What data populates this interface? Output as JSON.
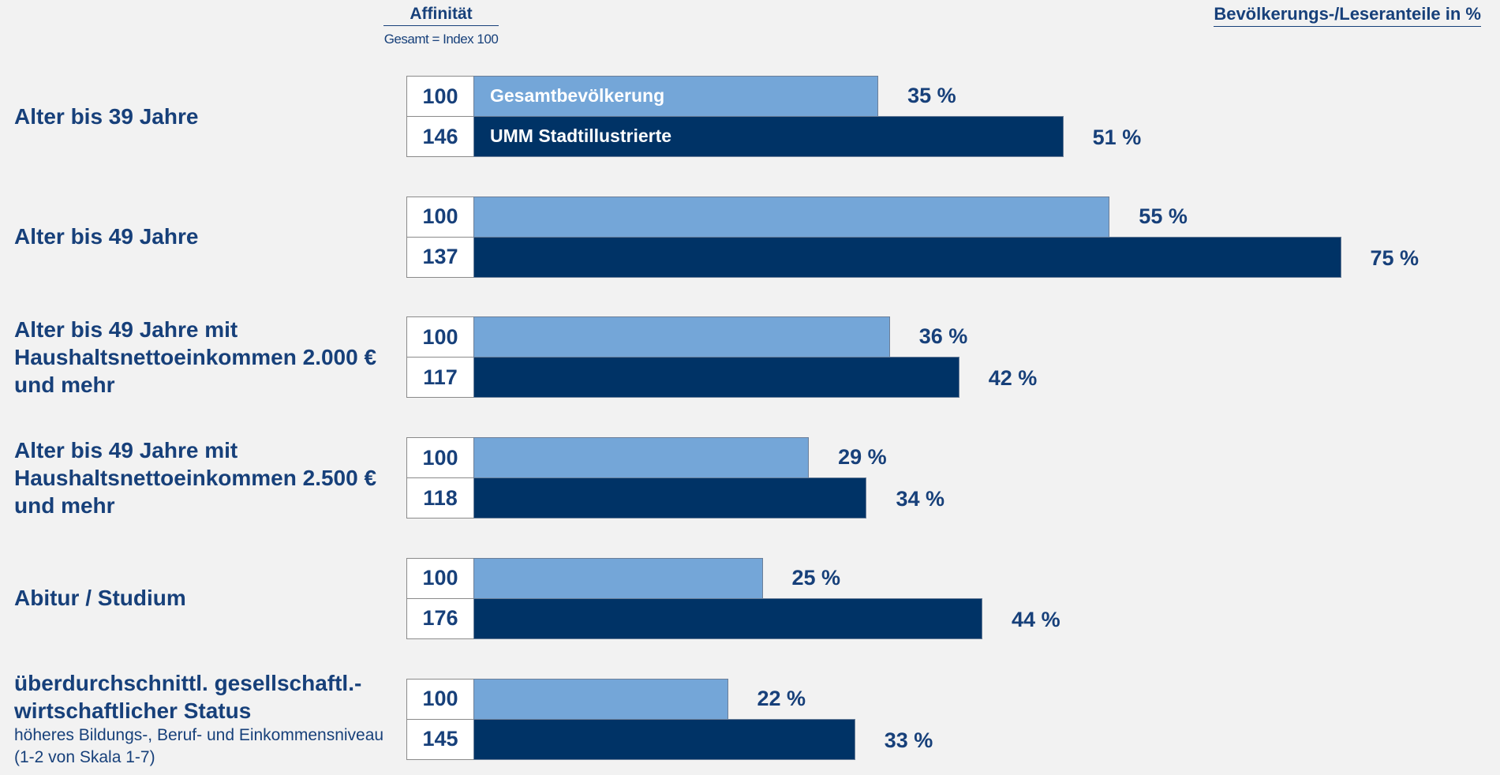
{
  "chart_data": {
    "type": "bar",
    "orientation": "horizontal",
    "affinity_title": "Affinität",
    "affinity_subtitle": "Gesamt = Index 100",
    "title": "Bevölkerungs-/Leseranteile in %",
    "categories": [
      "Alter bis 39 Jahre",
      "Alter bis 49 Jahre",
      "Alter bis 49 Jahre mit Haushaltsnettoeinkommen 2.000 € und mehr",
      "Alter bis 49 Jahre mit Haushaltsnettoeinkommen 2.500 € und mehr",
      "Abitur / Studium",
      "überdurchschnittl. gesellschaftl.-wirtschaftlicher Status"
    ],
    "category_notes": [
      null,
      null,
      null,
      null,
      null,
      "höheres Bildungs-, Beruf- und Einkommensniveau (1-2 von Skala 1-7)"
    ],
    "series": [
      {
        "name": "Gesamtbevölkerung",
        "color": "#74a6d8",
        "values": [
          35,
          55,
          36,
          29,
          25,
          22
        ],
        "value_labels": [
          "35 %",
          "55 %",
          "36 %",
          "29 %",
          "25 %",
          "22 %"
        ],
        "affinity": [
          100,
          100,
          100,
          100,
          100,
          100
        ]
      },
      {
        "name": "UMM Stadtillustrierte",
        "color": "#003366",
        "values": [
          51,
          75,
          42,
          34,
          44,
          33
        ],
        "value_labels": [
          "51 %",
          "75 %",
          "42 %",
          "34 %",
          "44 %",
          "33 %"
        ],
        "affinity": [
          146,
          137,
          117,
          118,
          176,
          145
        ]
      }
    ],
    "xlim": [
      0,
      100
    ]
  }
}
